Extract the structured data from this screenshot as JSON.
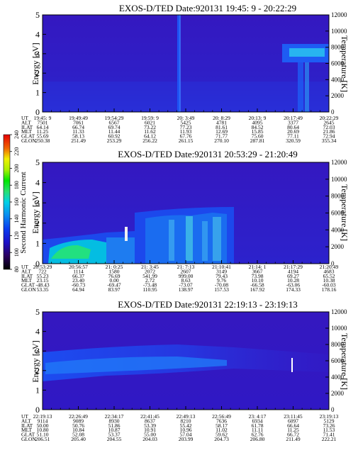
{
  "chart_data": [
    {
      "type": "heatmap",
      "title": "EXOS-D/TED   Date:920131  19:45: 9 - 20:22:29",
      "ylabel": "Energy [eV]",
      "y2label": "Temperature [K]",
      "ylim": [
        0,
        5
      ],
      "y_ticks": [
        "0",
        "1",
        "2",
        "3",
        "4",
        "5"
      ],
      "y2lim": [
        0,
        12000
      ],
      "y2_ticks": [
        "0",
        "2000",
        "4000",
        "6000",
        "8000",
        "10000",
        "12000"
      ],
      "row_labels": [
        "UT",
        "ALT",
        "ILAT",
        "MLT",
        "GLAT",
        "GLON"
      ],
      "columns": [
        [
          "19:45: 9",
          "7501",
          "64.14",
          "11.25",
          "55.69",
          "250.38"
        ],
        [
          "19:49:49",
          "7061",
          "66.74",
          "11.33",
          "58.13",
          "251.49"
        ],
        [
          "19:54:29",
          "6567",
          "69.74",
          "11.44",
          "60.92",
          "253.29"
        ],
        [
          "19:59: 9",
          "6021",
          "73.22",
          "11.62",
          "64.12",
          "256.22"
        ],
        [
          "20: 3:49",
          "5425",
          "77.23",
          "11.93",
          "67.76",
          "261.15"
        ],
        [
          "20: 8:29",
          "4781",
          "81.61",
          "12.69",
          "71.77",
          "270.10"
        ],
        [
          "20:13: 9",
          "4095",
          "84.52",
          "15.85",
          "75.60",
          "287.81"
        ],
        [
          "20:17:49",
          "3377",
          "80.64",
          "20.69",
          "77.11",
          "320.59"
        ],
        [
          "20:22:29",
          "2645",
          "72.03",
          "21.86",
          "72.94",
          "355.34"
        ]
      ]
    },
    {
      "type": "heatmap",
      "title": "EXOS-D/TED   Date:920131  20:53:29 - 21:20:49",
      "ylabel": "Energy [eV]",
      "y2label": "Temperature [K]",
      "ylim": [
        0,
        5
      ],
      "y_ticks": [
        "0",
        "1",
        "2",
        "3",
        "4",
        "5"
      ],
      "y2lim": [
        0,
        12000
      ],
      "y2_ticks": [
        "0",
        "2000",
        "4000",
        "6000",
        "8000",
        "10000",
        "12000"
      ],
      "row_labels": [
        "UT",
        "ALT",
        "ILAT",
        "MLT",
        "GLAT",
        "GLON"
      ],
      "columns": [
        [
          "20:53:29",
          "722",
          "55.23",
          "23.15",
          "-48.43",
          "53.35"
        ],
        [
          "20:56:57",
          "1114",
          "66.37",
          "23.40",
          "-60.73",
          "64.94"
        ],
        [
          "21: 0:25",
          "1580",
          "76.69",
          "0.00",
          "-69.47",
          "83.97"
        ],
        [
          "21: 3:45",
          "2072",
          "541.99",
          "2.72",
          "-73.48",
          "110.95"
        ],
        [
          "21: 7:13",
          "2607",
          "999.00",
          "8.63",
          "-73.07",
          "138.97"
        ],
        [
          "21:10:41",
          "3149",
          "79.43",
          "9.76",
          "-70.08",
          "157.53"
        ],
        [
          "21:14: 1",
          "3667",
          "73.98",
          "10.10",
          "-66.58",
          "167.92"
        ],
        [
          "21:17:29",
          "4194",
          "69.27",
          "10.28",
          "-63.06",
          "174.33"
        ],
        [
          "21:20:49",
          "4683",
          "65.52",
          "10.38",
          "-60.03",
          "178.16"
        ]
      ]
    },
    {
      "type": "heatmap",
      "title": "EXOS-D/TED   Date:920131  22:19:13 - 23:19:13",
      "ylabel": "Energy [eV]",
      "y2label": "Temperature [K]",
      "ylim": [
        0,
        5
      ],
      "y_ticks": [
        "0",
        "1",
        "2",
        "3",
        "4",
        "5"
      ],
      "y2lim": [
        0,
        12000
      ],
      "y2_ticks": [
        "0",
        "2000",
        "4000",
        "6000",
        "8000",
        "10000",
        "12000"
      ],
      "row_labels": [
        "UT",
        "ALT",
        "ILAT",
        "MLT",
        "GLAT",
        "GLON"
      ],
      "columns": [
        [
          "22:19:13",
          "9114",
          "50.00",
          "10.80",
          "51.10",
          "206.51"
        ],
        [
          "22:26:49",
          "9089",
          "50.76",
          "10.84",
          "52.08",
          "205.40"
        ],
        [
          "22:34:17",
          "8930",
          "51.86",
          "10.87",
          "53.37",
          "204.55"
        ],
        [
          "22:41:45",
          "8637",
          "53.39",
          "10.91",
          "55.00",
          "204.03"
        ],
        [
          "22:49:13",
          "8210",
          "55.42",
          "10.96",
          "57.04",
          "203.99"
        ],
        [
          "22:56:49",
          "7636",
          "58.17",
          "11.02",
          "59.62",
          "204.73"
        ],
        [
          "23: 4:17",
          "6934",
          "61.78",
          "11.11",
          "62.76",
          "206.80"
        ],
        [
          "23:11:45",
          "6097",
          "66.64",
          "11.25",
          "66.72",
          "211.49"
        ],
        [
          "23:19:13",
          "5129",
          "73.26",
          "11.53",
          "71.41",
          "222.21"
        ]
      ]
    }
  ],
  "colorbar": {
    "label": "Second Harmonic Current",
    "ticks": [
      "80",
      "100",
      "120",
      "140",
      "160",
      "180",
      "200",
      "220",
      "240"
    ],
    "colors": [
      "#000000",
      "#2a0060",
      "#1c10c8",
      "#0a3cf0",
      "#0a8cf0",
      "#00d2e6",
      "#28e070",
      "#00e600",
      "#aaf000",
      "#f0f000",
      "#f0b400",
      "#f06400",
      "#e60000"
    ]
  }
}
